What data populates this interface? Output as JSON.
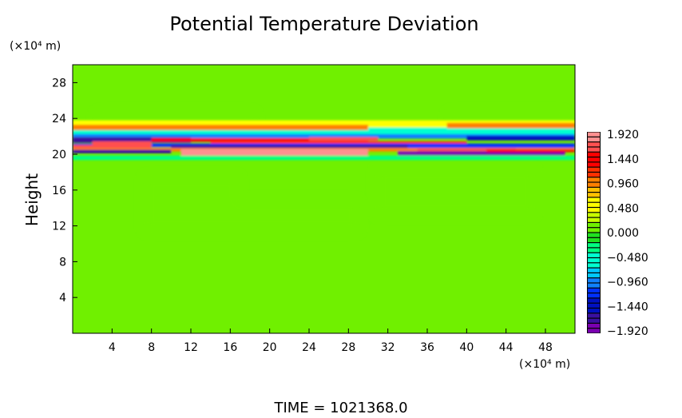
{
  "chart_data": {
    "type": "heatmap",
    "title": "Potential Temperature Deviation",
    "xlabel": "",
    "x_unit": "(×10⁴ m)",
    "ylabel": "Height",
    "y_unit": "(×10⁴ m)",
    "xlim": [
      0,
      51
    ],
    "ylim": [
      0,
      30
    ],
    "x_ticks": [
      "4",
      "8",
      "12",
      "16",
      "20",
      "24",
      "28",
      "32",
      "36",
      "40",
      "44",
      "48"
    ],
    "y_ticks": [
      "4",
      "8",
      "12",
      "16",
      "20",
      "24",
      "28"
    ],
    "colorbar": {
      "range": [
        -1.92,
        1.92
      ],
      "levels": 40,
      "ticks": [
        "1.920",
        "1.440",
        "0.960",
        "0.480",
        "0.000",
        "-0.480",
        "-0.960",
        "-1.440",
        "-1.920"
      ],
      "colors": [
        "#7a00b0",
        "#3a10a0",
        "#0010c0",
        "#0030ff",
        "#1080ff",
        "#00c8ff",
        "#00ffd0",
        "#00ff80",
        "#20e020",
        "#70f000",
        "#c8ff00",
        "#ffff00",
        "#ffc000",
        "#ff8000",
        "#ff3000",
        "#ff0000",
        "#ff5050",
        "#ff9090"
      ]
    },
    "background_value": 0.0,
    "features": [
      {
        "description_label": "",
        "height_range": [
          19.5,
          22.5
        ],
        "value_range": [
          -1.92,
          1.92
        ]
      }
    ],
    "footer": "TIME  =  1021368.0"
  }
}
